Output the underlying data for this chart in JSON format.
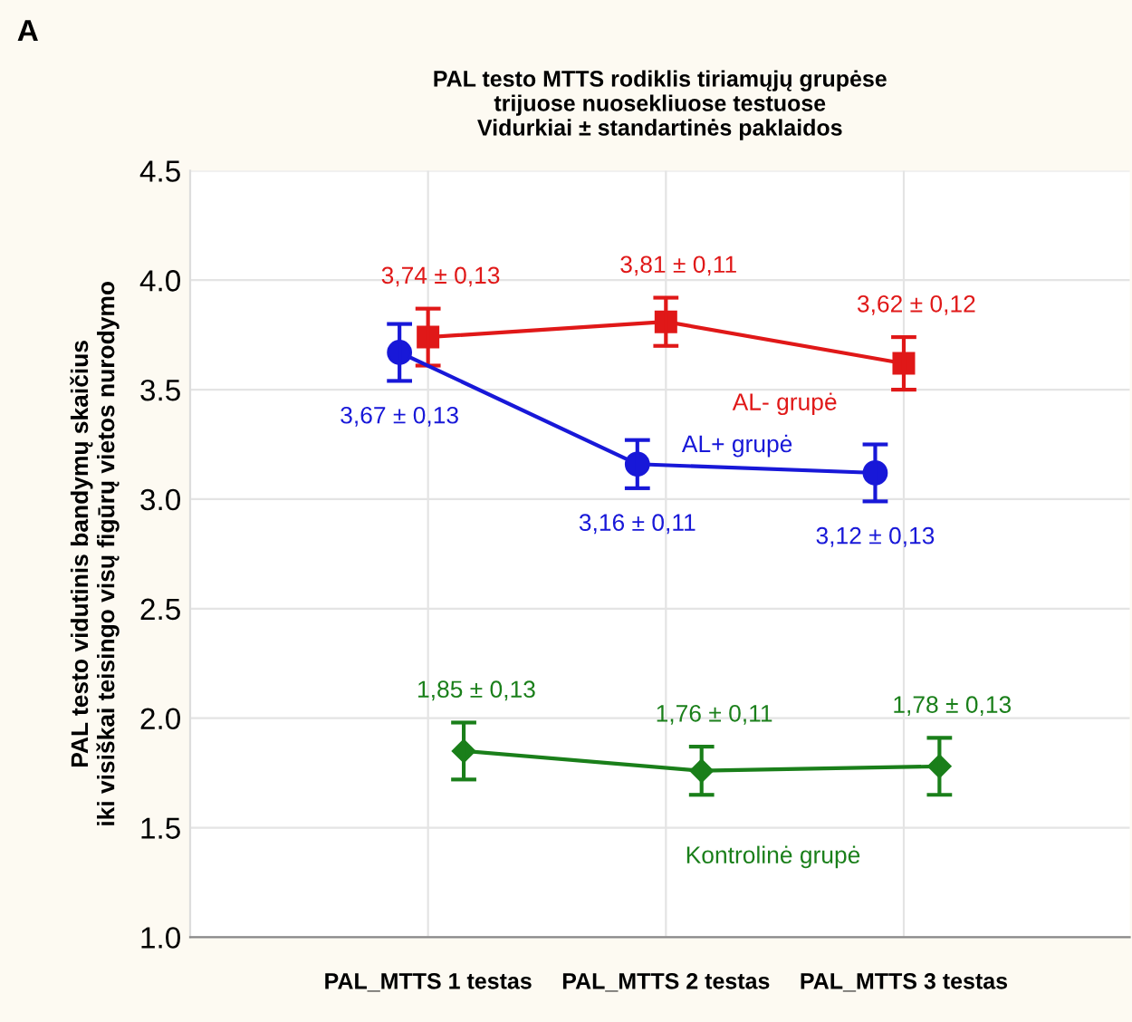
{
  "chart_data": {
    "type": "line",
    "title": "PAL testo MTTS rodiklis tiriamųjų grupėse\ntrijuose nuosekliuose testuose\nVidurkiai ± standartinės paklaidos",
    "ylabel": "PAL testo vidutinis bandymų skaičius\niki visiškai teisingo visų figūrų vietos nurodymo",
    "annotations": [
      "A"
    ],
    "categories": [
      "PAL_MTTS 1 testas",
      "PAL_MTTS 2 testas",
      "PAL_MTTS 3 testas"
    ],
    "ylim": [
      1.0,
      4.5
    ],
    "yticks": [
      {
        "value": 1.0,
        "label": "1.0"
      },
      1.5,
      {
        "value": 2.0,
        "label": "2.0"
      },
      2.5,
      {
        "value": 3.0,
        "label": "3.0"
      },
      3.5,
      {
        "value": 4.0,
        "label": "4.0"
      },
      4.5
    ],
    "grid": true,
    "legend": false,
    "line_style": "solid",
    "series": [
      {
        "name": "AL- grupė",
        "color": "#e01818",
        "marker": "square",
        "values": [
          3.74,
          3.81,
          3.62
        ],
        "errors": [
          0.13,
          0.11,
          0.12
        ],
        "value_labels": [
          "3,74 ± 0,13",
          "3,81 ± 0,11",
          "3,62 ± 0,12"
        ]
      },
      {
        "name": "AL+ grupė",
        "color": "#1818d8",
        "marker": "circle",
        "values": [
          3.67,
          3.16,
          3.12
        ],
        "errors": [
          0.13,
          0.11,
          0.13
        ],
        "value_labels": [
          "3,67 ± 0,13",
          "3,16 ± 0,11",
          "3,12 ± 0,13"
        ]
      },
      {
        "name": "Kontrolinė grupė",
        "color": "#1a7f1a",
        "marker": "diamond",
        "values": [
          1.85,
          1.76,
          1.78
        ],
        "errors": [
          0.13,
          0.11,
          0.13
        ],
        "value_labels": [
          "1,85 ± 0,13",
          "1,76 ± 0,11",
          "1,78 ± 0,13"
        ]
      }
    ]
  }
}
